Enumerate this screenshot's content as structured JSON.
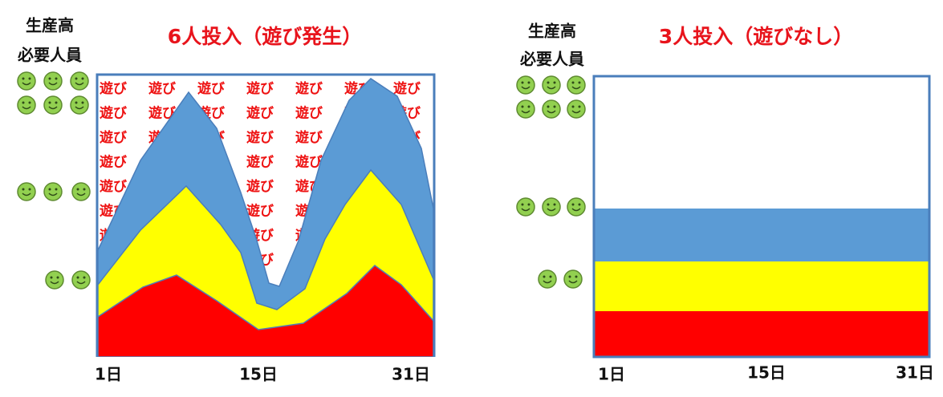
{
  "left": {
    "output_label": "生産高",
    "staff_label": "必要人員",
    "title": "6人投入（遊び発生）",
    "idle_label": "遊び",
    "x_labels": [
      "1日",
      "15日",
      "31日"
    ]
  },
  "right": {
    "output_label": "生産高",
    "staff_label": "必要人員",
    "title": "3人投入（遊びなし）",
    "x_labels": [
      "1日",
      "15日",
      "31日"
    ]
  }
}
